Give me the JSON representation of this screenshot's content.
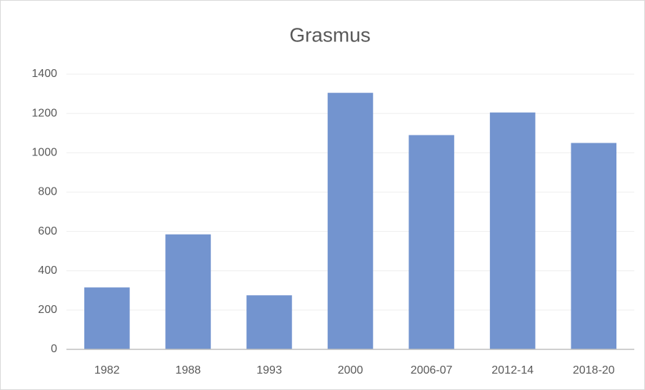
{
  "chart_data": {
    "type": "bar",
    "title": "Grasmus",
    "categories": [
      "1982",
      "1988",
      "1993",
      "2000",
      "2006-07",
      "2012-14",
      "2018-20"
    ],
    "values": [
      315,
      585,
      275,
      1305,
      1090,
      1205,
      1050
    ],
    "color": "#7394cf",
    "ylim": [
      0,
      1400
    ],
    "yticks": [
      0,
      200,
      400,
      600,
      800,
      1000,
      1200,
      1400
    ],
    "grid": true
  }
}
